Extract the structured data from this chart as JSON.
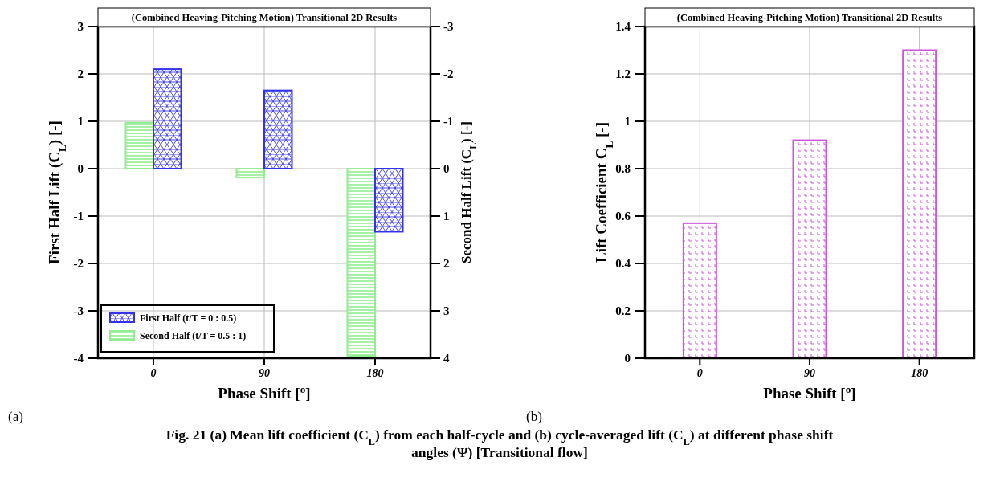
{
  "chart_data": [
    {
      "type": "bar",
      "title": "(Combined Heaving-Pitching Motion) Transitional 2D Results",
      "xlabel": "Phase Shift [$^{o}$]",
      "ylabel": "First Half Lift (C$_{L}$) [-]",
      "y2label": "Second Half Lift (C$_{L}$) [-]",
      "categories": [
        "0",
        "90",
        "180"
      ],
      "series": [
        {
          "name": "Second Half (t/T = 0.5 : 1)",
          "color": "#90ee90",
          "axis": "y2",
          "values": [
            -0.97,
            0.19,
            3.95
          ]
        },
        {
          "name": "First Half (t/T = 0 : 0.5)",
          "color": "#3333ee",
          "values": [
            2.1,
            1.65,
            -1.33
          ]
        }
      ],
      "ylim": [
        -4,
        3
      ],
      "yticks": [
        -4,
        -3,
        -2,
        -1,
        0,
        1,
        2,
        3
      ],
      "y2lim": [
        4,
        -3
      ],
      "y2ticks": [
        4,
        3,
        2,
        1,
        0,
        -1,
        -2,
        -3
      ],
      "grid": true,
      "legend": "bottom left",
      "annotations": [
        "(a)",
        "Fig. 21 (a) Mean lift coefficient (C$_{L}$) from each half-cycle and (b) cycle-averaged lift (C$_{L}$) at different phase shift angles (Ψ) [Transitional flow]"
      ]
    },
    {
      "type": "bar",
      "title": "(Combined Heaving-Pitching Motion) Transitional 2D Results",
      "xlabel": "Phase Shift [$^{o}$]",
      "ylabel": "Lift Coefficient C$_{L}$ [-]",
      "categories": [
        "0",
        "90",
        "180"
      ],
      "series": [
        {
          "color": "#cc55dd",
          "values": [
            0.57,
            0.92,
            1.3
          ]
        }
      ],
      "ylim": [
        0,
        1.4
      ],
      "yticks": [
        0,
        0.2,
        0.4,
        0.6,
        0.8,
        1,
        1.2,
        1.4
      ],
      "grid": true,
      "legend": false,
      "annotations": [
        "(b)"
      ]
    }
  ]
}
